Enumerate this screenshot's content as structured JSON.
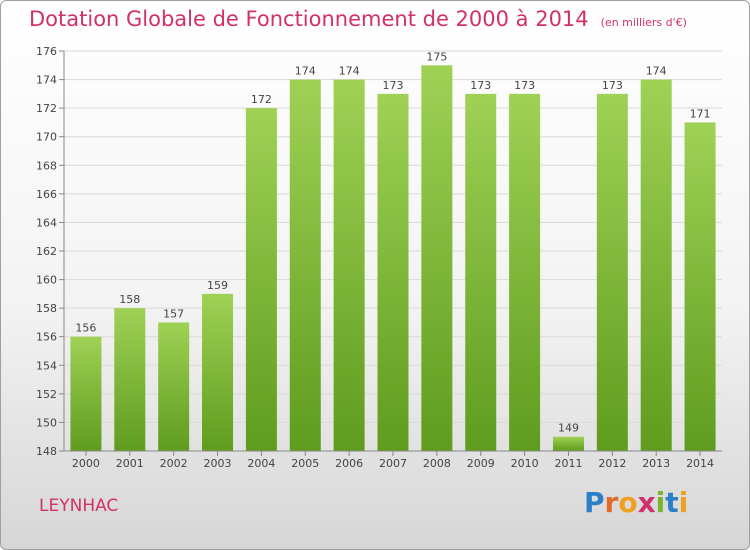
{
  "header": {
    "title": "Dotation Globale de Fonctionnement de 2000 à 2014",
    "unit": "(en milliers d'€)"
  },
  "footer": {
    "commune": "LEYNHAC",
    "logo": "Proxiti"
  },
  "colors": {
    "title": "#d2306b",
    "bar_top": "#9fd155",
    "bar_bottom": "#5f9c1d",
    "grid": "#d9d9d9"
  },
  "chart_data": {
    "type": "bar",
    "categories": [
      "2000",
      "2001",
      "2002",
      "2003",
      "2004",
      "2005",
      "2006",
      "2007",
      "2008",
      "2009",
      "2010",
      "2011",
      "2012",
      "2013",
      "2014"
    ],
    "values": [
      156,
      158,
      157,
      159,
      172,
      174,
      174,
      173,
      175,
      173,
      173,
      149,
      173,
      174,
      171
    ],
    "title": "Dotation Globale de Fonctionnement de 2000 à 2014",
    "subtitle": "(en milliers d'€)",
    "xlabel": "",
    "ylabel": "",
    "ylim": [
      148,
      176
    ],
    "yticks": [
      148,
      150,
      152,
      154,
      156,
      158,
      160,
      162,
      164,
      166,
      168,
      170,
      172,
      174,
      176
    ],
    "grid": true,
    "data_labels": true
  }
}
